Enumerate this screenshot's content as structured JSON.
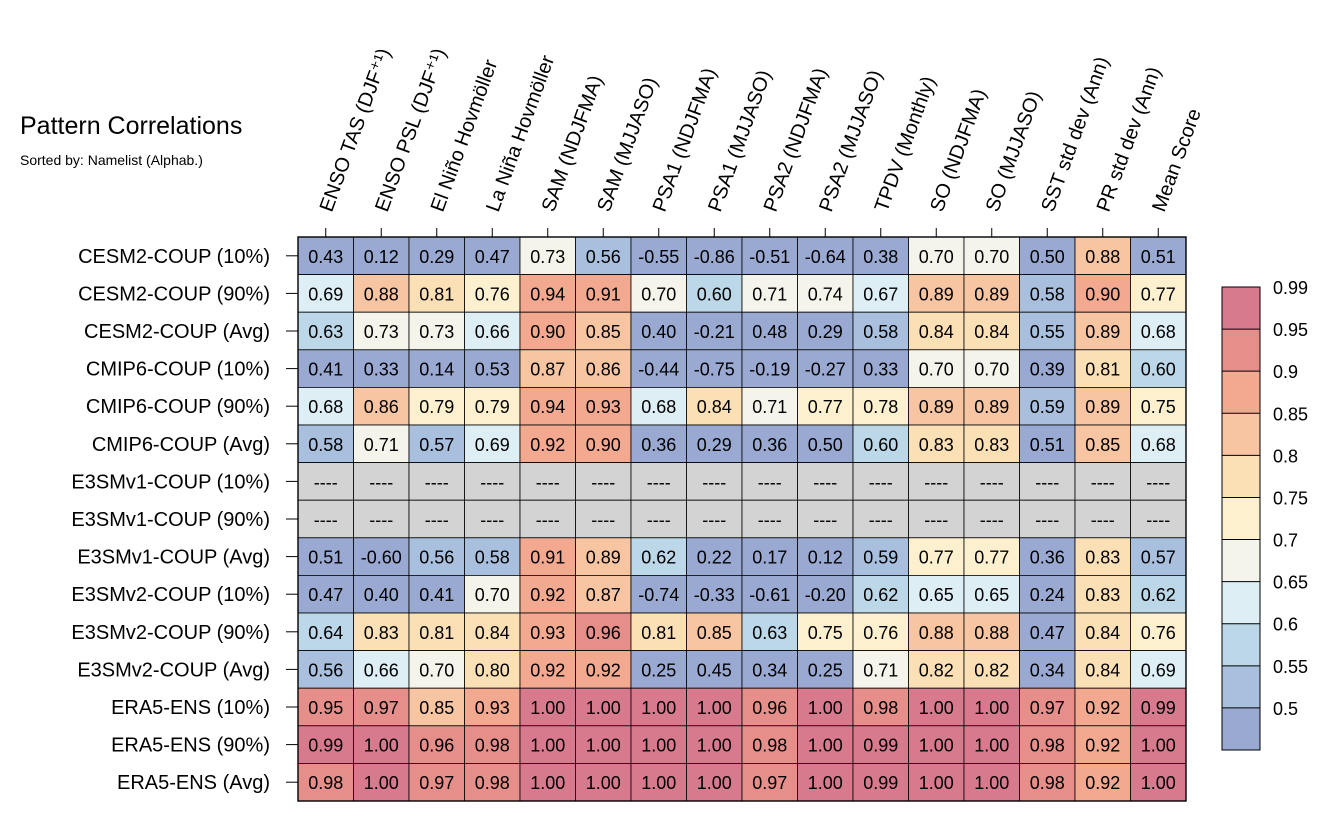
{
  "title": "Pattern Correlations",
  "subtitle": "Sorted by: Namelist (Alphab.)",
  "missing_label": "----",
  "chart_data": {
    "type": "heatmap",
    "title": "Pattern Correlations",
    "subtitle": "Sorted by: Namelist (Alphab.)",
    "columns": [
      "ENSO TAS (DJF⁺¹)",
      "ENSO PSL (DJF⁺¹)",
      "El Niño Hovmöller",
      "La Niña Hovmöller",
      "SAM (NDJFMA)",
      "SAM (MJJASO)",
      "PSA1 (NDJFMA)",
      "PSA1 (MJJASO)",
      "PSA2 (NDJFMA)",
      "PSA2 (MJJASO)",
      "TPDV (Monthly)",
      "SO (NDJFMA)",
      "SO (MJJASO)",
      "SST std dev (Ann)",
      "PR std dev (Ann)",
      "Mean Score"
    ],
    "rows": [
      "CESM2-COUP (10%)",
      "CESM2-COUP (90%)",
      "CESM2-COUP (Avg)",
      "CMIP6-COUP (10%)",
      "CMIP6-COUP (90%)",
      "CMIP6-COUP (Avg)",
      "E3SMv1-COUP (10%)",
      "E3SMv1-COUP (90%)",
      "E3SMv1-COUP (Avg)",
      "E3SMv2-COUP (10%)",
      "E3SMv2-COUP (90%)",
      "E3SMv2-COUP (Avg)",
      "ERA5-ENS (10%)",
      "ERA5-ENS (90%)",
      "ERA5-ENS (Avg)"
    ],
    "values": [
      [
        "0.43",
        "0.12",
        "0.29",
        "0.47",
        "0.73",
        "0.56",
        "-0.55",
        "-0.86",
        "-0.51",
        "-0.64",
        "0.38",
        "0.70",
        "0.70",
        "0.50",
        "0.88",
        "0.51"
      ],
      [
        "0.69",
        "0.88",
        "0.81",
        "0.76",
        "0.94",
        "0.91",
        "0.70",
        "0.60",
        "0.71",
        "0.74",
        "0.67",
        "0.89",
        "0.89",
        "0.58",
        "0.90",
        "0.77"
      ],
      [
        "0.63",
        "0.73",
        "0.73",
        "0.66",
        "0.90",
        "0.85",
        "0.40",
        "-0.21",
        "0.48",
        "0.29",
        "0.58",
        "0.84",
        "0.84",
        "0.55",
        "0.89",
        "0.68"
      ],
      [
        "0.41",
        "0.33",
        "0.14",
        "0.53",
        "0.87",
        "0.86",
        "-0.44",
        "-0.75",
        "-0.19",
        "-0.27",
        "0.33",
        "0.70",
        "0.70",
        "0.39",
        "0.81",
        "0.60"
      ],
      [
        "0.68",
        "0.86",
        "0.79",
        "0.79",
        "0.94",
        "0.93",
        "0.68",
        "0.84",
        "0.71",
        "0.77",
        "0.78",
        "0.89",
        "0.89",
        "0.59",
        "0.89",
        "0.75"
      ],
      [
        "0.58",
        "0.71",
        "0.57",
        "0.69",
        "0.92",
        "0.90",
        "0.36",
        "0.29",
        "0.36",
        "0.50",
        "0.60",
        "0.83",
        "0.83",
        "0.51",
        "0.85",
        "0.68"
      ],
      [
        null,
        null,
        null,
        null,
        null,
        null,
        null,
        null,
        null,
        null,
        null,
        null,
        null,
        null,
        null,
        null
      ],
      [
        null,
        null,
        null,
        null,
        null,
        null,
        null,
        null,
        null,
        null,
        null,
        null,
        null,
        null,
        null,
        null
      ],
      [
        "0.51",
        "-0.60",
        "0.56",
        "0.58",
        "0.91",
        "0.89",
        "0.62",
        "0.22",
        "0.17",
        "0.12",
        "0.59",
        "0.77",
        "0.77",
        "0.36",
        "0.83",
        "0.57"
      ],
      [
        "0.47",
        "0.40",
        "0.41",
        "0.70",
        "0.92",
        "0.87",
        "-0.74",
        "-0.33",
        "-0.61",
        "-0.20",
        "0.62",
        "0.65",
        "0.65",
        "0.24",
        "0.83",
        "0.62"
      ],
      [
        "0.64",
        "0.83",
        "0.81",
        "0.84",
        "0.93",
        "0.96",
        "0.81",
        "0.85",
        "0.63",
        "0.75",
        "0.76",
        "0.88",
        "0.88",
        "0.47",
        "0.84",
        "0.76"
      ],
      [
        "0.56",
        "0.66",
        "0.70",
        "0.80",
        "0.92",
        "0.92",
        "0.25",
        "0.45",
        "0.34",
        "0.25",
        "0.71",
        "0.82",
        "0.82",
        "0.34",
        "0.84",
        "0.69"
      ],
      [
        "0.95",
        "0.97",
        "0.85",
        "0.93",
        "1.00",
        "1.00",
        "1.00",
        "1.00",
        "0.96",
        "1.00",
        "0.98",
        "1.00",
        "1.00",
        "0.97",
        "0.92",
        "0.99"
      ],
      [
        "0.99",
        "1.00",
        "0.96",
        "0.98",
        "1.00",
        "1.00",
        "1.00",
        "1.00",
        "0.98",
        "1.00",
        "0.99",
        "1.00",
        "1.00",
        "0.98",
        "0.92",
        "1.00"
      ],
      [
        "0.98",
        "1.00",
        "0.97",
        "0.98",
        "1.00",
        "1.00",
        "1.00",
        "1.00",
        "0.97",
        "1.00",
        "0.99",
        "1.00",
        "1.00",
        "0.98",
        "0.92",
        "1.00"
      ]
    ],
    "colorbar": {
      "levels": [
        "0.5",
        "0.55",
        "0.6",
        "0.65",
        "0.7",
        "0.75",
        "0.8",
        "0.85",
        "0.9",
        "0.95",
        "0.99"
      ],
      "colors": [
        "#99a9d2",
        "#a8bfde",
        "#bcd7e7",
        "#ddeef5",
        "#f5f4ea",
        "#fdf0cf",
        "#fbe0b6",
        "#f7c5a1",
        "#f2a990",
        "#e68f8a",
        "#d87a8e"
      ],
      "missing_color": "#d3d3d3"
    }
  }
}
